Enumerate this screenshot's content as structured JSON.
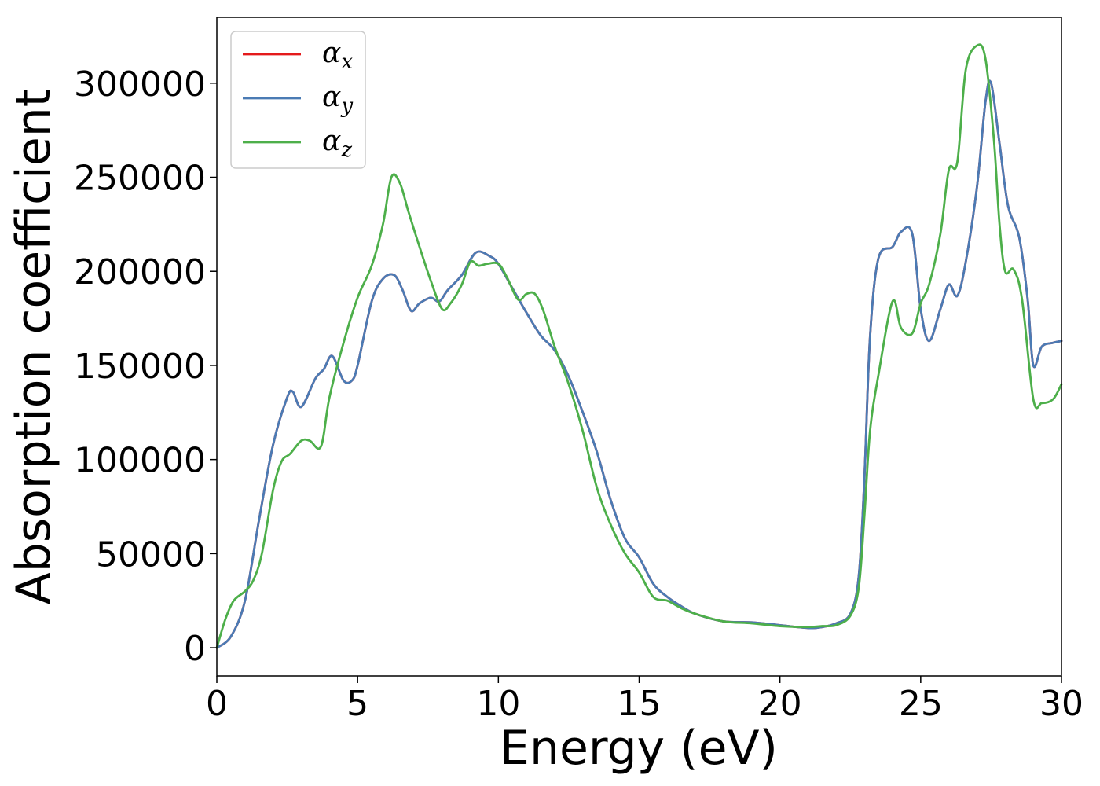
{
  "chart_data": {
    "type": "line",
    "xlabel": "Energy (eV)",
    "ylabel": "Absorption coefficient",
    "xlim": [
      0,
      30
    ],
    "ylim": [
      -15000,
      335000
    ],
    "xticks": [
      0,
      5,
      10,
      15,
      20,
      25,
      30
    ],
    "yticks": [
      0,
      50000,
      100000,
      150000,
      200000,
      250000,
      300000
    ],
    "grid": false,
    "legend_position": "top-left",
    "series": [
      {
        "name": "α_x",
        "legend_symbol": "α",
        "legend_subscript": "x",
        "color": "#e41a1c",
        "x": [
          0,
          0.5,
          1,
          1.5,
          2,
          2.5,
          2.7,
          3,
          3.5,
          3.8,
          4.1,
          4.5,
          4.8,
          5,
          5.5,
          5.9,
          6.3,
          6.6,
          6.9,
          7.2,
          7.6,
          7.9,
          8.2,
          8.7,
          9.2,
          9.7,
          10,
          10.5,
          11,
          11.5,
          12,
          12.5,
          13,
          13.5,
          14,
          14.5,
          15,
          15.5,
          16,
          16.5,
          17,
          18,
          19,
          20,
          21,
          21.5,
          22,
          22.5,
          22.8,
          23,
          23.2,
          23.5,
          24,
          24.3,
          24.7,
          25,
          25.3,
          25.7,
          26,
          26.3,
          26.6,
          27,
          27.3,
          27.5,
          27.8,
          28.1,
          28.5,
          28.8,
          29,
          29.3,
          29.7,
          30
        ],
        "values": [
          0,
          6000,
          25000,
          68000,
          108000,
          133000,
          136000,
          128000,
          143000,
          148000,
          155000,
          142000,
          142000,
          150000,
          184000,
          196000,
          198000,
          190000,
          179000,
          183000,
          186000,
          184000,
          190000,
          198000,
          210000,
          208000,
          204000,
          191000,
          178000,
          166000,
          158000,
          144000,
          125000,
          104000,
          78000,
          58000,
          48000,
          34000,
          27000,
          22000,
          18000,
          14000,
          13500,
          12000,
          10500,
          11000,
          13000,
          18000,
          38000,
          90000,
          165000,
          207000,
          213000,
          221000,
          220000,
          180000,
          163000,
          180000,
          193000,
          187000,
          205000,
          245000,
          290000,
          300000,
          268000,
          235000,
          218000,
          185000,
          150000,
          160000,
          162000,
          163000
        ]
      },
      {
        "name": "α_y",
        "legend_symbol": "α",
        "legend_subscript": "y",
        "color": "#4b7bb4",
        "x": [
          0,
          0.5,
          1,
          1.5,
          2,
          2.5,
          2.7,
          3,
          3.5,
          3.8,
          4.1,
          4.5,
          4.8,
          5,
          5.5,
          5.9,
          6.3,
          6.6,
          6.9,
          7.2,
          7.6,
          7.9,
          8.2,
          8.7,
          9.2,
          9.7,
          10,
          10.5,
          11,
          11.5,
          12,
          12.5,
          13,
          13.5,
          14,
          14.5,
          15,
          15.5,
          16,
          16.5,
          17,
          18,
          19,
          20,
          21,
          21.5,
          22,
          22.5,
          22.8,
          23,
          23.2,
          23.5,
          24,
          24.3,
          24.7,
          25,
          25.3,
          25.7,
          26,
          26.3,
          26.6,
          27,
          27.3,
          27.5,
          27.8,
          28.1,
          28.5,
          28.8,
          29,
          29.3,
          29.7,
          30
        ],
        "values": [
          0,
          6000,
          25000,
          68000,
          108000,
          133000,
          136000,
          128000,
          143000,
          148000,
          155000,
          142000,
          142000,
          150000,
          184000,
          196000,
          198000,
          190000,
          179000,
          183000,
          186000,
          184000,
          190000,
          198000,
          210000,
          208000,
          204000,
          191000,
          178000,
          166000,
          158000,
          144000,
          125000,
          104000,
          78000,
          58000,
          48000,
          34000,
          27000,
          22000,
          18000,
          14000,
          13500,
          12000,
          10500,
          11000,
          13000,
          18000,
          38000,
          90000,
          165000,
          207000,
          213000,
          221000,
          220000,
          180000,
          163000,
          180000,
          193000,
          187000,
          205000,
          245000,
          290000,
          300000,
          268000,
          235000,
          218000,
          185000,
          150000,
          160000,
          162000,
          163000
        ]
      },
      {
        "name": "α_z",
        "legend_symbol": "α",
        "legend_subscript": "z",
        "color": "#4daf4a",
        "x": [
          0,
          0.3,
          0.6,
          1,
          1.3,
          1.6,
          2,
          2.3,
          2.6,
          3,
          3.3,
          3.7,
          4,
          4.5,
          5,
          5.5,
          5.9,
          6.2,
          6.5,
          6.8,
          7.2,
          7.6,
          8,
          8.3,
          8.7,
          9,
          9.3,
          9.6,
          10,
          10.3,
          10.7,
          11,
          11.3,
          11.6,
          12,
          12.5,
          13,
          13.5,
          14,
          14.5,
          15,
          15.5,
          16,
          16.5,
          17,
          18,
          19,
          20,
          21,
          21.5,
          22,
          22.5,
          22.8,
          23,
          23.2,
          23.5,
          24,
          24.3,
          24.7,
          25,
          25.3,
          25.7,
          26,
          26.3,
          26.6,
          27,
          27.3,
          27.6,
          27.8,
          28,
          28.3,
          28.6,
          29,
          29.3,
          29.7,
          30
        ],
        "values": [
          0,
          15000,
          25000,
          30000,
          36000,
          50000,
          84000,
          99000,
          103000,
          110000,
          110000,
          107000,
          133000,
          162000,
          186000,
          203000,
          225000,
          250000,
          247000,
          232000,
          213000,
          195000,
          180000,
          183000,
          193000,
          205000,
          203000,
          204000,
          204000,
          197000,
          185000,
          188000,
          188000,
          179000,
          160000,
          140000,
          115000,
          85000,
          65000,
          50000,
          40000,
          27000,
          25000,
          21000,
          18000,
          14000,
          13000,
          11500,
          11000,
          11500,
          12000,
          17000,
          32000,
          70000,
          115000,
          145000,
          184000,
          170000,
          167000,
          183000,
          193000,
          220000,
          254000,
          258000,
          307000,
          320000,
          313000,
          270000,
          225000,
          200000,
          201000,
          185000,
          132000,
          130000,
          132000,
          140000
        ]
      }
    ]
  }
}
